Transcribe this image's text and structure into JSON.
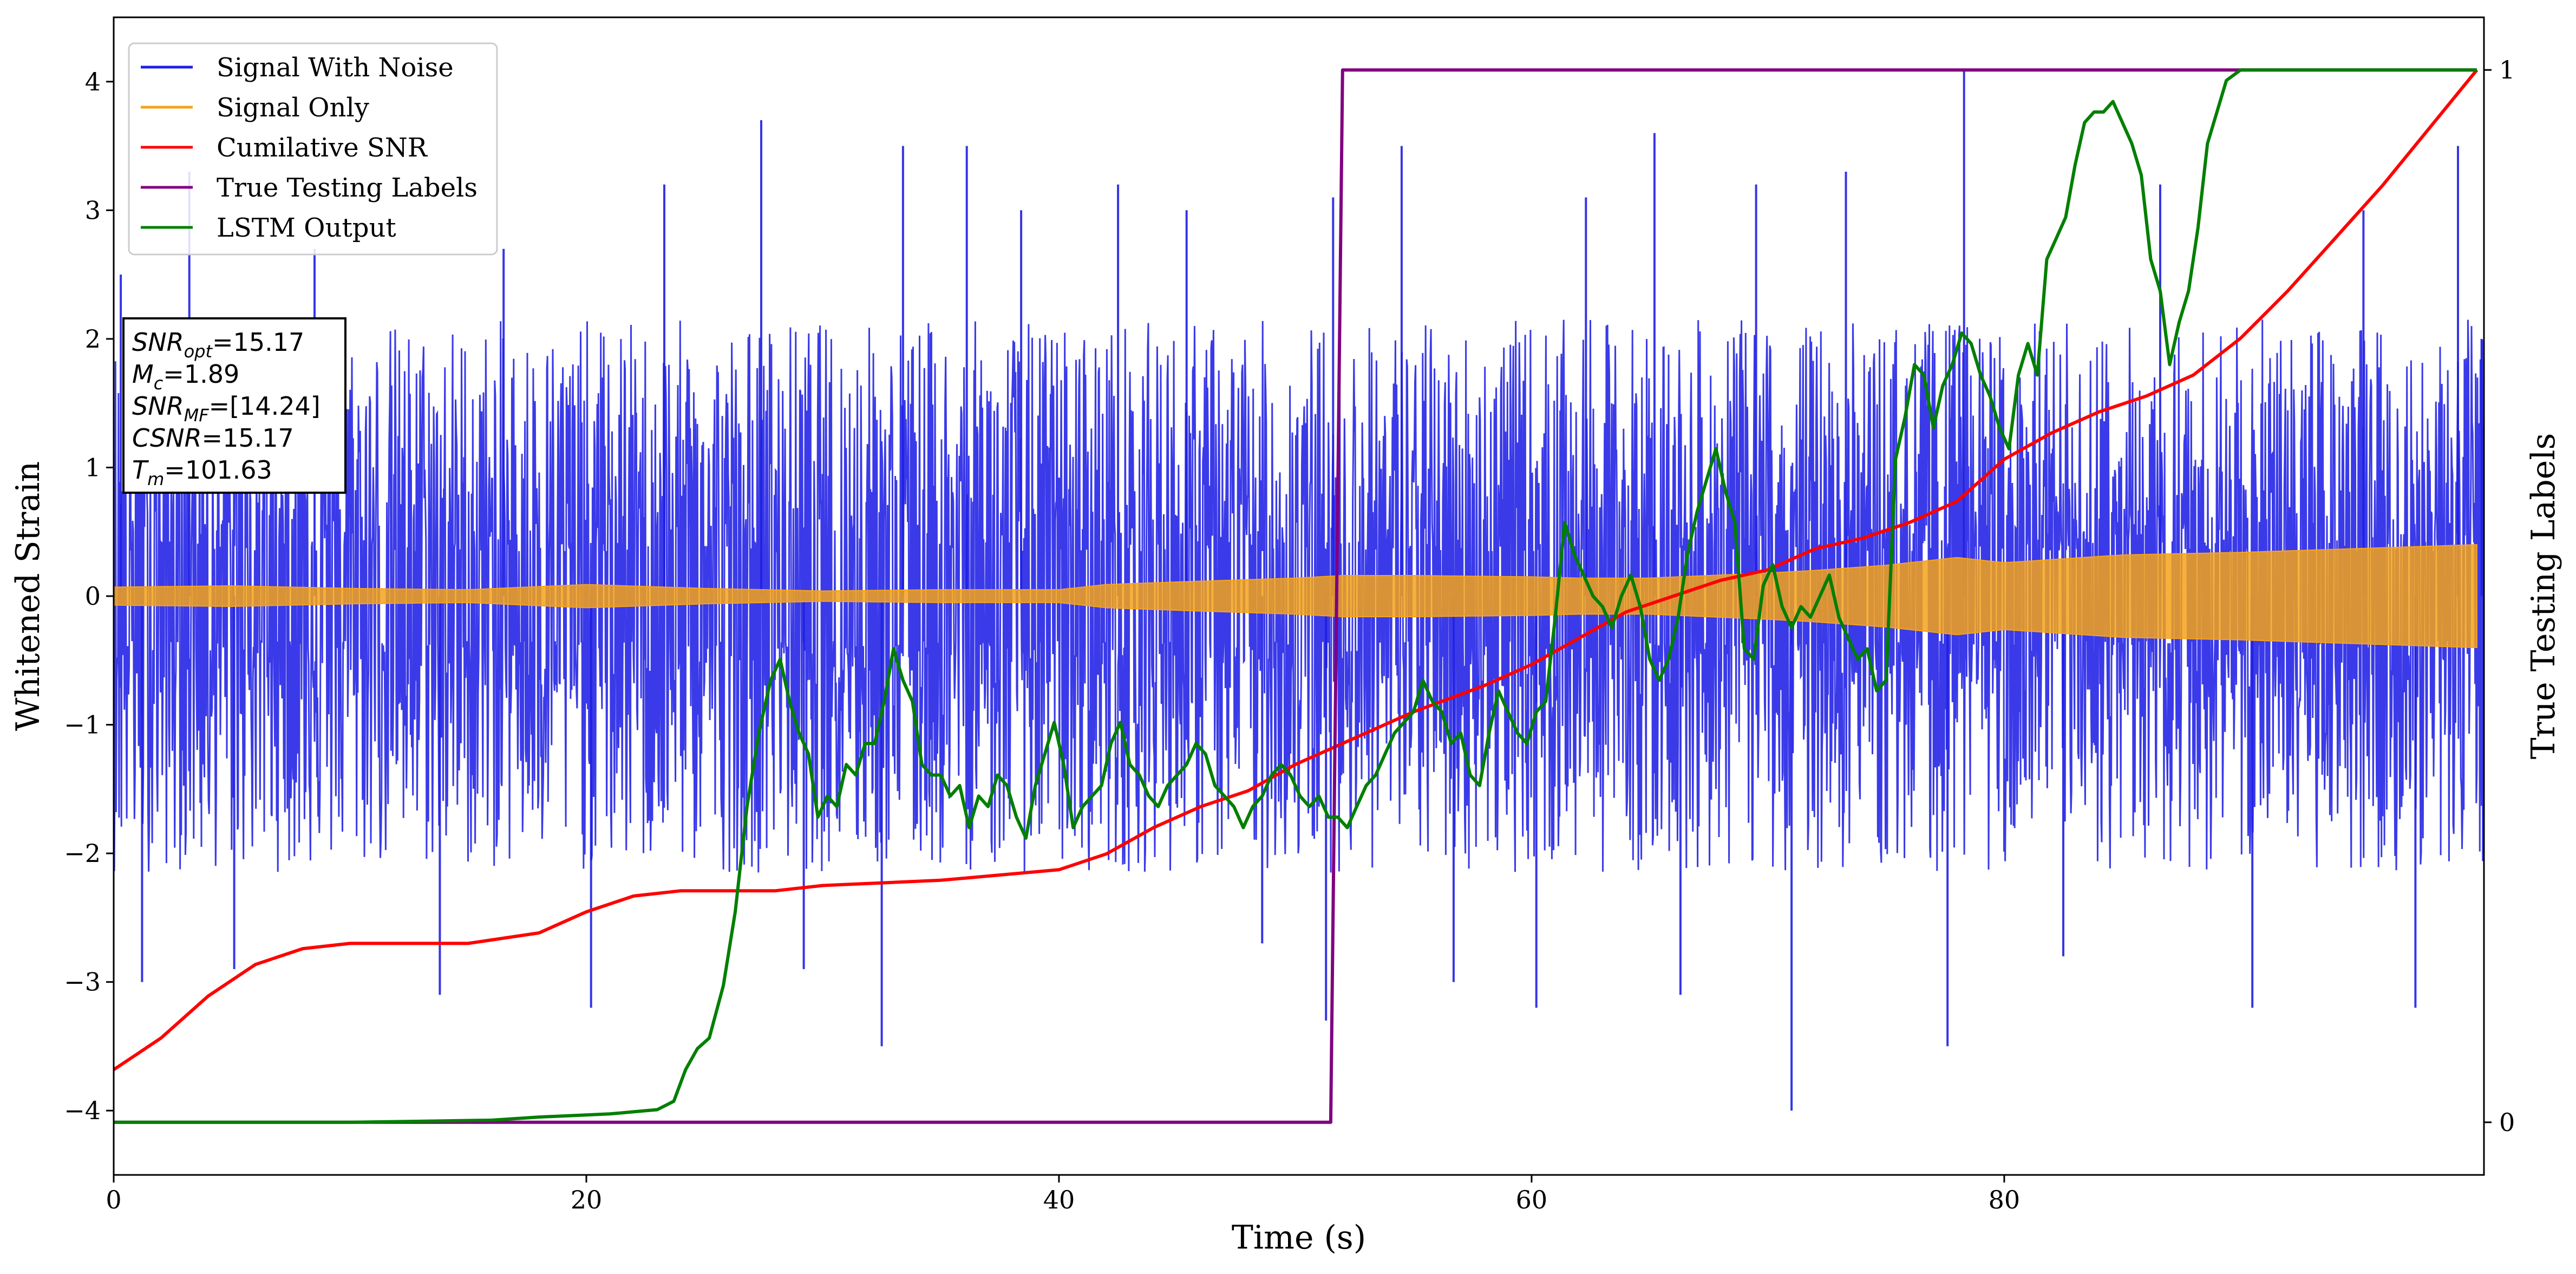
{
  "chart_data": {
    "type": "line",
    "xlabel": "Time (s)",
    "ylabel": "Whitened Strain",
    "ylabel_right": "True Testing Labels",
    "xlim": [
      0,
      100.3
    ],
    "ylim": [
      -4.5,
      4.5
    ],
    "ylim_right": [
      -0.05,
      1.05
    ],
    "x_ticks": [
      "0",
      "20",
      "40",
      "60",
      "80"
    ],
    "x_tick_values": [
      0,
      20,
      40,
      60,
      80
    ],
    "y_ticks": [
      "−4",
      "−3",
      "−2",
      "−1",
      "0",
      "1",
      "2",
      "3",
      "4"
    ],
    "y_tick_values": [
      -4,
      -3,
      -2,
      -1,
      0,
      1,
      2,
      3,
      4
    ],
    "y_right_ticks": [
      "0",
      "1"
    ],
    "y_right_tick_values": [
      0,
      1
    ],
    "grid": false,
    "legend_position": "top-left",
    "series": [
      {
        "name": "Signal With Noise",
        "color": "#1f1fe6",
        "axis": "left",
        "kind": "noise",
        "x_range": [
          0,
          100.3
        ],
        "envelope_typical": 1.0,
        "peaks": [
          [
            0.3,
            2.5
          ],
          [
            1.2,
            -3.0
          ],
          [
            3.2,
            3.3
          ],
          [
            5.1,
            -2.9
          ],
          [
            8.5,
            2.7
          ],
          [
            13.8,
            -3.1
          ],
          [
            16.5,
            2.7
          ],
          [
            20.2,
            -3.2
          ],
          [
            23.3,
            3.2
          ],
          [
            27.4,
            3.7
          ],
          [
            29.2,
            -2.9
          ],
          [
            32.5,
            -3.5
          ],
          [
            33.4,
            3.5
          ],
          [
            36.1,
            3.5
          ],
          [
            38.4,
            3.0
          ],
          [
            42.5,
            3.2
          ],
          [
            45.4,
            3.0
          ],
          [
            48.6,
            -2.7
          ],
          [
            51.3,
            -3.3
          ],
          [
            51.6,
            3.1
          ],
          [
            54.5,
            3.5
          ],
          [
            56.7,
            -3.0
          ],
          [
            60.2,
            -3.2
          ],
          [
            62.3,
            3.1
          ],
          [
            65.2,
            3.6
          ],
          [
            66.3,
            -3.1
          ],
          [
            69.5,
            3.2
          ],
          [
            71.0,
            -4.0
          ],
          [
            73.3,
            3.3
          ],
          [
            77.6,
            -3.5
          ],
          [
            78.3,
            4.1
          ],
          [
            82.5,
            -2.8
          ],
          [
            86.6,
            3.2
          ],
          [
            90.5,
            -3.2
          ],
          [
            95.2,
            3.0
          ],
          [
            97.4,
            -3.2
          ],
          [
            99.2,
            3.5
          ],
          [
            100.2,
            2.0
          ]
        ]
      },
      {
        "name": "Signal Only",
        "color": "#f5a31a",
        "axis": "left",
        "kind": "envelope",
        "x": [
          0,
          5,
          10,
          15,
          20,
          25,
          30,
          35,
          40,
          42,
          45,
          50,
          52,
          55,
          60,
          62,
          65,
          70,
          72,
          75,
          78,
          80,
          85,
          90,
          95,
          100
        ],
        "amplitude": [
          0.07,
          0.08,
          0.06,
          0.05,
          0.09,
          0.06,
          0.04,
          0.05,
          0.05,
          0.09,
          0.11,
          0.14,
          0.16,
          0.16,
          0.15,
          0.14,
          0.14,
          0.18,
          0.2,
          0.24,
          0.3,
          0.26,
          0.32,
          0.34,
          0.37,
          0.4
        ]
      },
      {
        "name": "Cumilative SNR",
        "color": "#ff0000",
        "axis": "right",
        "x": [
          0,
          2,
          4,
          6,
          8,
          10,
          12,
          15,
          18,
          20,
          22,
          24,
          26,
          28,
          30,
          35,
          40,
          42,
          44,
          46,
          48,
          50,
          52,
          55,
          58,
          60,
          62,
          64,
          66,
          68,
          70,
          72,
          74,
          76,
          78,
          80,
          82,
          84,
          86,
          88,
          90,
          92,
          94,
          96,
          98,
          100
        ],
        "y": [
          0.05,
          0.08,
          0.12,
          0.15,
          0.165,
          0.17,
          0.17,
          0.17,
          0.18,
          0.2,
          0.215,
          0.22,
          0.22,
          0.22,
          0.225,
          0.23,
          0.24,
          0.255,
          0.28,
          0.3,
          0.315,
          0.34,
          0.36,
          0.39,
          0.415,
          0.435,
          0.46,
          0.485,
          0.5,
          0.515,
          0.525,
          0.545,
          0.555,
          0.57,
          0.59,
          0.63,
          0.655,
          0.675,
          0.69,
          0.71,
          0.745,
          0.79,
          0.84,
          0.89,
          0.945,
          1.0
        ]
      },
      {
        "name": "True Testing Labels",
        "color": "#800080",
        "axis": "right",
        "x": [
          0,
          51.5,
          52.0,
          100
        ],
        "y": [
          0,
          0,
          1,
          1
        ]
      },
      {
        "name": "LSTM Output",
        "color": "#007f00",
        "axis": "right",
        "x": [
          0,
          10,
          16,
          18,
          20,
          21,
          22,
          23,
          23.7,
          24.2,
          24.7,
          25.2,
          25.8,
          26.3,
          26.8,
          27.3,
          27.8,
          28.2,
          28.6,
          29.0,
          29.4,
          29.8,
          30.2,
          30.6,
          31.0,
          31.4,
          31.8,
          32.2,
          32.6,
          33.0,
          33.4,
          33.8,
          34.2,
          34.6,
          35.0,
          35.4,
          35.8,
          36.2,
          36.6,
          37.0,
          37.4,
          37.8,
          38.2,
          38.6,
          39.0,
          39.4,
          39.8,
          40.2,
          40.6,
          41.0,
          41.4,
          41.8,
          42.2,
          42.6,
          43.0,
          43.4,
          43.8,
          44.2,
          44.6,
          45.0,
          45.4,
          45.8,
          46.2,
          46.6,
          47.0,
          47.4,
          47.8,
          48.2,
          48.6,
          49.0,
          49.4,
          49.8,
          50.2,
          50.6,
          51.0,
          51.4,
          51.8,
          52.2,
          52.6,
          53.0,
          53.4,
          53.8,
          54.2,
          54.6,
          55.0,
          55.4,
          55.8,
          56.2,
          56.6,
          57.0,
          57.4,
          57.8,
          58.2,
          58.6,
          59.0,
          59.4,
          59.8,
          60.2,
          60.6,
          61.0,
          61.4,
          61.8,
          62.2,
          62.6,
          63.0,
          63.4,
          63.8,
          64.2,
          64.6,
          65.0,
          65.4,
          65.8,
          66.2,
          66.6,
          67.0,
          67.4,
          67.8,
          68.2,
          68.6,
          69.0,
          69.4,
          69.8,
          70.2,
          70.6,
          71.0,
          71.4,
          71.8,
          72.2,
          72.6,
          73.0,
          73.4,
          73.8,
          74.2,
          74.6,
          75.0,
          75.4,
          75.8,
          76.2,
          76.6,
          77.0,
          77.4,
          77.8,
          78.2,
          78.6,
          79.0,
          79.4,
          79.8,
          80.2,
          80.6,
          81.0,
          81.4,
          81.8,
          82.2,
          82.6,
          83.0,
          83.4,
          83.8,
          84.2,
          84.6,
          85.0,
          85.4,
          85.8,
          86.2,
          86.6,
          87.0,
          87.4,
          87.8,
          88.2,
          88.6,
          89.0,
          89.4,
          90,
          92,
          95,
          100
        ],
        "y": [
          0.0,
          0.0,
          0.002,
          0.005,
          0.007,
          0.008,
          0.01,
          0.012,
          0.02,
          0.05,
          0.07,
          0.08,
          0.13,
          0.2,
          0.3,
          0.37,
          0.42,
          0.44,
          0.4,
          0.37,
          0.35,
          0.29,
          0.31,
          0.3,
          0.34,
          0.33,
          0.36,
          0.36,
          0.4,
          0.45,
          0.42,
          0.4,
          0.34,
          0.33,
          0.33,
          0.31,
          0.32,
          0.28,
          0.31,
          0.3,
          0.33,
          0.32,
          0.29,
          0.27,
          0.32,
          0.35,
          0.38,
          0.34,
          0.28,
          0.3,
          0.31,
          0.32,
          0.36,
          0.38,
          0.34,
          0.33,
          0.31,
          0.3,
          0.32,
          0.33,
          0.34,
          0.36,
          0.35,
          0.32,
          0.31,
          0.3,
          0.28,
          0.3,
          0.31,
          0.33,
          0.34,
          0.33,
          0.31,
          0.3,
          0.31,
          0.29,
          0.29,
          0.28,
          0.3,
          0.32,
          0.33,
          0.35,
          0.37,
          0.38,
          0.39,
          0.42,
          0.4,
          0.39,
          0.36,
          0.37,
          0.33,
          0.32,
          0.37,
          0.41,
          0.39,
          0.37,
          0.36,
          0.39,
          0.4,
          0.48,
          0.57,
          0.54,
          0.52,
          0.5,
          0.49,
          0.47,
          0.5,
          0.52,
          0.49,
          0.44,
          0.42,
          0.44,
          0.48,
          0.54,
          0.58,
          0.61,
          0.64,
          0.6,
          0.57,
          0.45,
          0.44,
          0.51,
          0.53,
          0.49,
          0.47,
          0.49,
          0.48,
          0.5,
          0.52,
          0.48,
          0.46,
          0.44,
          0.45,
          0.41,
          0.42,
          0.63,
          0.67,
          0.72,
          0.71,
          0.66,
          0.7,
          0.72,
          0.75,
          0.74,
          0.71,
          0.69,
          0.66,
          0.64,
          0.71,
          0.74,
          0.71,
          0.82,
          0.84,
          0.86,
          0.91,
          0.95,
          0.96,
          0.96,
          0.97,
          0.95,
          0.93,
          0.9,
          0.82,
          0.79,
          0.72,
          0.76,
          0.79,
          0.85,
          0.93,
          0.96,
          0.99,
          1.0,
          1.0,
          1.0,
          1.0
        ]
      }
    ],
    "annotation_lines": [
      {
        "sym": "SNR",
        "sub": "opt",
        "val": "=15.17"
      },
      {
        "sym": "M",
        "sub": "c",
        "val": "=1.89"
      },
      {
        "sym": "SNR",
        "sub": "MF",
        "val": "=[14.24]"
      },
      {
        "sym": "CSNR",
        "sub": "",
        "val": "=15.17"
      },
      {
        "sym": "T",
        "sub": "m",
        "val": "=101.63"
      }
    ]
  }
}
